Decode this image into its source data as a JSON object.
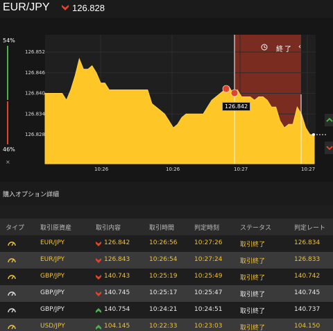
{
  "header": {
    "pair": "EUR/JPY",
    "rate": "126.828",
    "direction_icon": "down-arrow-icon"
  },
  "gauge": {
    "top_percent": "54%",
    "bottom_percent": "46%",
    "close": "×",
    "up_color": "#4caf50",
    "down_color": "#e0452c"
  },
  "chart_data": {
    "type": "area",
    "title": "",
    "yticks": [
      "126.852",
      "126.846",
      "126.840",
      "126.834",
      "126.828"
    ],
    "xticks": [
      "10:26",
      "10:26",
      "10:27",
      "10:27"
    ],
    "current_price_label": "126.842",
    "end_label": "終了",
    "fill_color": "#ffc628",
    "expiry_zone_color": "#8b2f22",
    "series": [
      {
        "values": [
          126.84,
          126.84,
          126.84,
          126.84,
          126.84,
          126.838,
          126.841,
          126.845,
          126.85,
          126.847,
          126.847,
          126.848,
          126.846,
          126.843,
          126.843,
          126.841,
          126.841,
          126.841,
          126.841,
          126.841,
          126.841,
          126.841,
          126.841,
          126.841,
          126.841,
          126.837,
          126.836,
          126.835,
          126.834,
          126.832,
          126.83,
          126.831,
          126.833,
          126.834,
          126.834,
          126.834,
          126.834,
          126.834,
          126.836,
          126.838,
          126.839,
          126.84,
          126.841,
          126.842,
          126.84,
          126.841,
          126.839,
          126.839,
          126.839,
          126.838,
          126.839,
          126.839,
          126.838,
          126.836,
          126.836,
          126.832,
          126.83,
          126.831,
          126.831,
          126.836,
          126.834,
          126.83,
          126.828,
          126.828
        ]
      }
    ]
  },
  "side_buttons": [
    "chevron-up-icon",
    "chevron-down-icon"
  ],
  "section": {
    "title": "購入オプション詳細"
  },
  "table": {
    "headers": [
      "タイプ",
      "取引原資産",
      "取引内容",
      "取引時間",
      "判定時刻",
      "ステータス",
      "判定レート"
    ],
    "rows": [
      {
        "pair": "EUR/JPY",
        "dir": "down",
        "content": "126.842",
        "time": "10:26:56",
        "judge": "10:27:26",
        "status": "取引終了",
        "rate": "126.834"
      },
      {
        "pair": "EUR/JPY",
        "dir": "down",
        "content": "126.843",
        "time": "10:26:54",
        "judge": "10:27:24",
        "status": "取引終了",
        "rate": "126.833"
      },
      {
        "pair": "GBP/JPY",
        "dir": "down",
        "content": "140.743",
        "time": "10:25:19",
        "judge": "10:25:49",
        "status": "取引終了",
        "rate": "140.742"
      },
      {
        "pair": "GBP/JPY",
        "dir": "down",
        "content": "140.745",
        "time": "10:25:17",
        "judge": "10:25:47",
        "status": "取引終了",
        "rate": "140.745"
      },
      {
        "pair": "GBP/JPY",
        "dir": "up",
        "content": "140.754",
        "time": "10:24:21",
        "judge": "10:24:51",
        "status": "取引終了",
        "rate": "140.737"
      },
      {
        "pair": "USD/JPY",
        "dir": "up",
        "content": "104.145",
        "time": "10:22:33",
        "judge": "10:23:03",
        "status": "取引終了",
        "rate": "104.150"
      }
    ]
  }
}
